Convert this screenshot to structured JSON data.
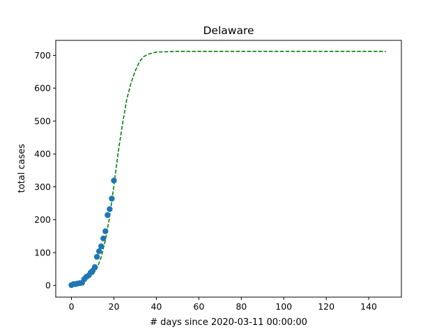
{
  "chart_data": {
    "type": "scatter",
    "title": "Delaware",
    "xlabel": "# days since 2020-03-11 00:00:00",
    "ylabel": "total cases",
    "xlim": [
      -7.4,
      155.4
    ],
    "ylim": [
      -35.5,
      745.5
    ],
    "xticks": [
      0,
      20,
      40,
      60,
      80,
      100,
      120,
      140
    ],
    "yticks": [
      0,
      100,
      200,
      300,
      400,
      500,
      600,
      700
    ],
    "grid": false,
    "legend": "none",
    "colors": {
      "points": "#1f77b4",
      "fit": "#008000"
    },
    "series": [
      {
        "kind": "scatter",
        "x": [
          0,
          1,
          2,
          3,
          4,
          5,
          6,
          7,
          8,
          9,
          10,
          11,
          12,
          13,
          14,
          15,
          16,
          17,
          18,
          19,
          20
        ],
        "y": [
          1,
          4,
          4,
          6,
          7,
          8,
          19,
          26,
          30,
          39,
          45,
          56,
          87,
          104,
          119,
          143,
          165,
          214,
          232,
          264,
          319
        ]
      },
      {
        "kind": "line",
        "style": "dashed",
        "x": [
          1,
          5,
          10,
          12,
          14,
          16,
          18,
          20,
          22,
          24,
          26,
          28,
          30,
          32,
          34,
          36,
          38,
          40,
          45,
          50,
          60,
          80,
          100,
          120,
          148
        ],
        "y": [
          3,
          10,
          32,
          52,
          86,
          138,
          210,
          305,
          405,
          490,
          565,
          615,
          652,
          680,
          696,
          703,
          707,
          710,
          711,
          712,
          712,
          712,
          712,
          712,
          712
        ]
      }
    ]
  }
}
